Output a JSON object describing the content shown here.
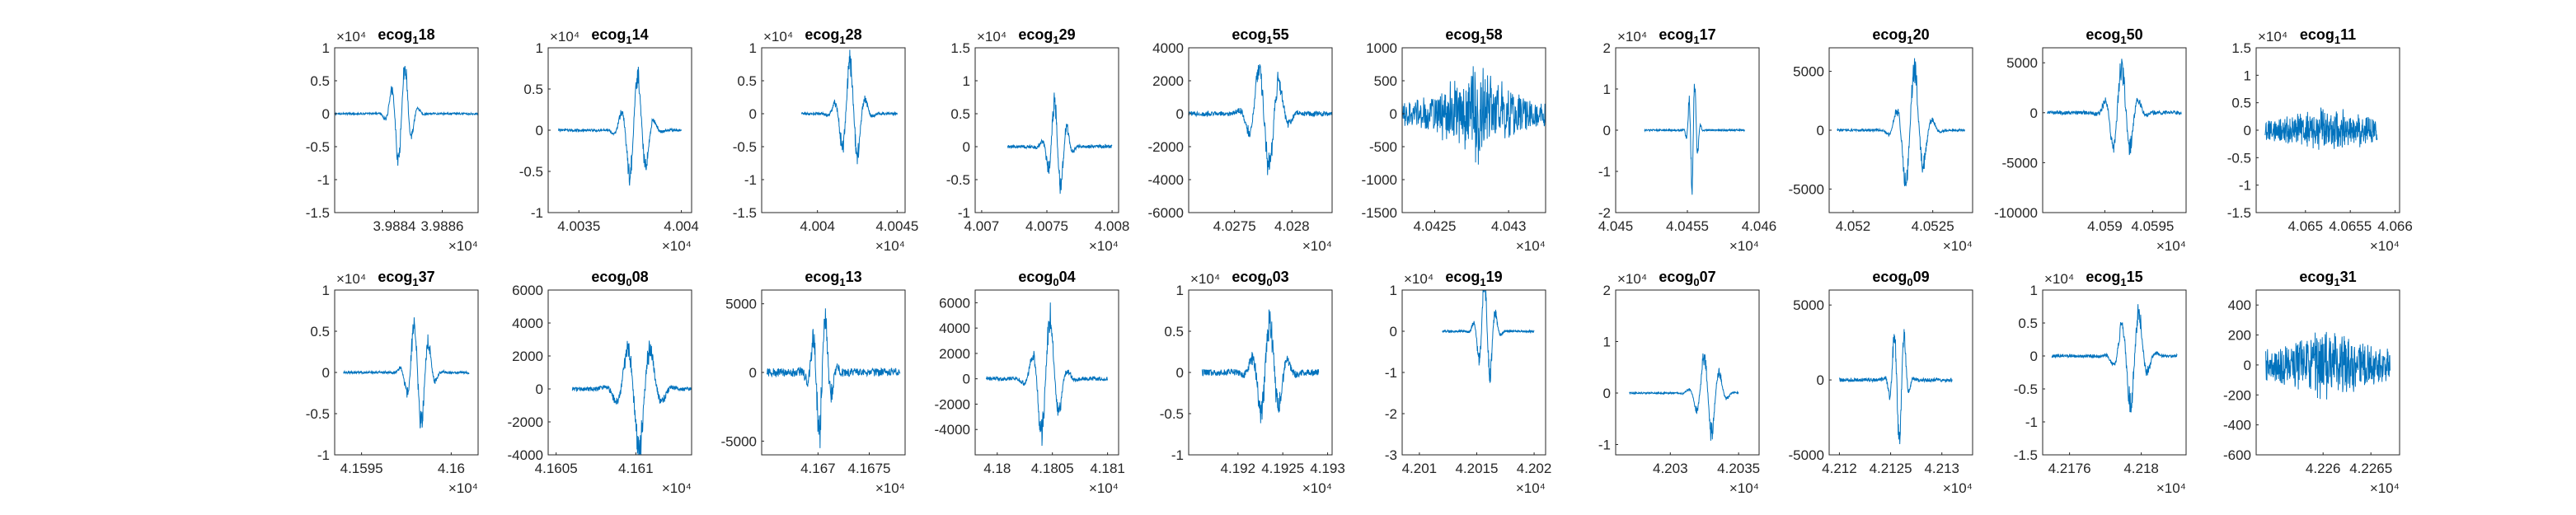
{
  "figure": {
    "background": "#ffffff",
    "line_color": "#0072bd",
    "axis_color": "#262626"
  },
  "chart_data": [
    {
      "type": "line",
      "title": "ecog",
      "subscript": "1",
      "channel": "18",
      "ylim": [
        -1.5,
        1
      ],
      "yticks": [
        "1",
        "0.5",
        "0",
        "-0.5",
        "-1",
        "-1.5"
      ],
      "yexp": "×10⁴",
      "xlim": [
        3.98815,
        3.98875
      ],
      "xticks": [
        "3.9884",
        "3.9886"
      ],
      "xexp": "×10⁴",
      "series": [
        {
          "style": "wavelet",
          "center": 3.98843,
          "width": 7e-05,
          "amplitude": 0.95,
          "noise": 0.03,
          "x_start": 3.98815,
          "x_end": 3.98875
        }
      ]
    },
    {
      "type": "line",
      "title": "ecog",
      "subscript": "1",
      "channel": "14",
      "ylim": [
        -1,
        1
      ],
      "yticks": [
        "1",
        "0.5",
        "0",
        "-0.5",
        "-1"
      ],
      "yexp": "×10⁴",
      "xlim": [
        4.00335,
        4.00405
      ],
      "xticks": [
        "4.0035",
        "4.004"
      ],
      "xexp": "×10⁴",
      "series": [
        {
          "style": "wavelet",
          "center": 4.00378,
          "width": 0.0001,
          "amplitude": 0.85,
          "noise": 0.03,
          "x_start": 4.0034,
          "x_end": 4.004
        }
      ]
    },
    {
      "type": "line",
      "title": "ecog",
      "subscript": "1",
      "channel": "28",
      "ylim": [
        -1.5,
        1
      ],
      "yticks": [
        "1",
        "0.5",
        "0",
        "-0.5",
        "-1",
        "-1.5"
      ],
      "yexp": "×10⁴",
      "xlim": [
        4.00365,
        4.00455
      ],
      "xticks": [
        "4.004",
        "4.0045"
      ],
      "xexp": "×10⁴",
      "series": [
        {
          "style": "wavelet",
          "center": 4.00421,
          "width": 0.00012,
          "amplitude": 1.0,
          "noise": 0.04,
          "x_start": 4.0039,
          "x_end": 4.0045
        }
      ]
    },
    {
      "type": "line",
      "title": "ecog",
      "subscript": "1",
      "channel": "29",
      "ylim": [
        -1,
        1.5
      ],
      "yticks": [
        "1.5",
        "1",
        "0.5",
        "0",
        "-0.5",
        "-1"
      ],
      "yexp": "×10⁴",
      "xlim": [
        4.00695,
        4.00805
      ],
      "xticks": [
        "4.007",
        "4.0075",
        "4.008"
      ],
      "xexp": "×10⁴",
      "series": [
        {
          "style": "wavelet",
          "center": 4.00758,
          "width": 0.00012,
          "amplitude": 0.9,
          "noise": 0.05,
          "x_start": 4.0072,
          "x_end": 4.008
        }
      ]
    },
    {
      "type": "line",
      "title": "ecog",
      "subscript": "1",
      "channel": "55",
      "ylim": [
        -6000,
        4000
      ],
      "yticks": [
        "4000",
        "2000",
        "0",
        "-2000",
        "-4000",
        "-6000"
      ],
      "yexp": "",
      "xlim": [
        4.0271,
        4.02835
      ],
      "xticks": [
        "4.0275",
        "4.028"
      ],
      "xexp": "×10⁴",
      "series": [
        {
          "style": "wavelet",
          "center": 4.02778,
          "width": 0.00022,
          "amplitude": 4200,
          "noise": 300,
          "x_start": 4.0271,
          "x_end": 4.02835
        }
      ]
    },
    {
      "type": "line",
      "title": "ecog",
      "subscript": "1",
      "channel": "58",
      "ylim": [
        -1500,
        1000
      ],
      "yticks": [
        "1000",
        "500",
        "0",
        "-500",
        "-1000",
        "-1500"
      ],
      "yexp": "",
      "xlim": [
        4.04228,
        4.04325
      ],
      "xticks": [
        "4.0425",
        "4.043"
      ],
      "xexp": "×10⁴",
      "series": [
        {
          "style": "noise",
          "center": 4.04278,
          "width": 0.0003,
          "amplitude": 900,
          "noise": 380,
          "x_start": 4.04228,
          "x_end": 4.04325
        }
      ]
    },
    {
      "type": "line",
      "title": "ecog",
      "subscript": "1",
      "channel": "17",
      "ylim": [
        -2,
        2
      ],
      "yticks": [
        "2",
        "1",
        "0",
        "-1",
        "-2"
      ],
      "yexp": "×10⁴",
      "xlim": [
        4.045,
        4.046
      ],
      "xticks": [
        "4.045",
        "4.0455",
        "4.046"
      ],
      "xexp": "×10⁴",
      "series": [
        {
          "style": "wavelet",
          "center": 4.04554,
          "width": 5e-05,
          "amplitude": 1.7,
          "noise": 0.04,
          "x_start": 4.0452,
          "x_end": 4.0459
        }
      ]
    },
    {
      "type": "line",
      "title": "ecog",
      "subscript": "1",
      "channel": "20",
      "ylim": [
        -7000,
        7000
      ],
      "yticks": [
        "5000",
        "0",
        "-5000"
      ],
      "yexp": "",
      "xlim": [
        4.05185,
        4.05275
      ],
      "xticks": [
        "4.052",
        "4.0525"
      ],
      "xexp": "×10⁴",
      "series": [
        {
          "style": "wavelet",
          "center": 4.05237,
          "width": 0.00014,
          "amplitude": 6500,
          "noise": 200,
          "x_start": 4.0519,
          "x_end": 4.0527
        }
      ]
    },
    {
      "type": "line",
      "title": "ecog",
      "subscript": "1",
      "channel": "50",
      "ylim": [
        -10000,
        6500
      ],
      "yticks": [
        "5000",
        "0",
        "-5000",
        "-10000"
      ],
      "yexp": "",
      "xlim": [
        4.05835,
        4.05985
      ],
      "xticks": [
        "4.059",
        "4.0595"
      ],
      "xexp": "×10⁴",
      "series": [
        {
          "style": "wavelet",
          "center": 4.05918,
          "width": 0.00022,
          "amplitude": 6000,
          "noise": 400,
          "x_start": 4.0584,
          "x_end": 4.0598
        }
      ]
    },
    {
      "type": "line",
      "title": "ecog",
      "subscript": "1",
      "channel": "11",
      "ylim": [
        -1.5,
        1.5
      ],
      "yticks": [
        "1.5",
        "1",
        "0.5",
        "0",
        "-0.5",
        "-1",
        "-1.5"
      ],
      "yexp": "×10⁴",
      "xlim": [
        4.06445,
        4.06605
      ],
      "xticks": [
        "4.065",
        "4.0655",
        "4.066"
      ],
      "xexp": "×10⁴",
      "series": [
        {
          "style": "noise",
          "center": 4.06525,
          "width": 0.0006,
          "amplitude": 0.35,
          "noise": 0.28,
          "x_start": 4.06455,
          "x_end": 4.0658
        }
      ]
    },
    {
      "type": "line",
      "title": "ecog",
      "subscript": "1",
      "channel": "37",
      "ylim": [
        -1,
        1
      ],
      "yticks": [
        "1",
        "0.5",
        "0",
        "-0.5",
        "-1"
      ],
      "yexp": "×10⁴",
      "xlim": [
        4.15935,
        4.16015
      ],
      "xticks": [
        "4.1595",
        "4.16"
      ],
      "xexp": "×10⁴",
      "series": [
        {
          "style": "wavelet",
          "center": 4.15982,
          "width": 0.0001,
          "amplitude": 0.85,
          "noise": 0.03,
          "x_start": 4.1594,
          "x_end": 4.1601
        }
      ]
    },
    {
      "type": "line",
      "title": "ecog",
      "subscript": "0",
      "channel": "08",
      "ylim": [
        -4000,
        6000
      ],
      "yticks": [
        "6000",
        "4000",
        "2000",
        "0",
        "-2000",
        "-4000"
      ],
      "yexp": "",
      "xlim": [
        4.16045,
        4.16135
      ],
      "xticks": [
        "4.1605",
        "4.161"
      ],
      "xexp": "×10⁴",
      "series": [
        {
          "style": "wavelet",
          "center": 4.16102,
          "width": 0.00018,
          "amplitude": 4300,
          "noise": 250,
          "x_start": 4.1606,
          "x_end": 4.16135
        }
      ]
    },
    {
      "type": "line",
      "title": "ecog",
      "subscript": "1",
      "channel": "13",
      "ylim": [
        -6000,
        6000
      ],
      "yticks": [
        "5000",
        "0",
        "-5000"
      ],
      "yexp": "",
      "xlim": [
        4.16645,
        4.16785
      ],
      "xticks": [
        "4.167",
        "4.1675"
      ],
      "xexp": "×10⁴",
      "series": [
        {
          "style": "wavelet",
          "center": 4.16703,
          "width": 0.00015,
          "amplitude": 5500,
          "noise": 600,
          "x_start": 4.1665,
          "x_end": 4.1678
        }
      ]
    },
    {
      "type": "line",
      "title": "ecog",
      "subscript": "0",
      "channel": "04",
      "ylim": [
        -6000,
        7000
      ],
      "yticks": [
        "6000",
        "4000",
        "2000",
        "0",
        "-2000",
        "-4000"
      ],
      "yexp": "",
      "xlim": [
        4.1798,
        4.1811
      ],
      "xticks": [
        "4.18",
        "4.1805",
        "4.181"
      ],
      "xexp": "×10⁴",
      "series": [
        {
          "style": "wavelet",
          "center": 4.18045,
          "width": 0.0002,
          "amplitude": 6000,
          "noise": 300,
          "x_start": 4.1799,
          "x_end": 4.181
        }
      ]
    },
    {
      "type": "line",
      "title": "ecog",
      "subscript": "0",
      "channel": "03",
      "ylim": [
        -1,
        1
      ],
      "yticks": [
        "1",
        "0.5",
        "0",
        "-0.5",
        "-1"
      ],
      "yexp": "×10⁴",
      "xlim": [
        4.19145,
        4.19305
      ],
      "xticks": [
        "4.192",
        "4.1925",
        "4.193"
      ],
      "xexp": "×10⁴",
      "series": [
        {
          "style": "wavelet",
          "center": 4.19235,
          "width": 0.00025,
          "amplitude": 0.8,
          "noise": 0.08,
          "x_start": 4.1916,
          "x_end": 4.1929
        }
      ]
    },
    {
      "type": "line",
      "title": "ecog",
      "subscript": "1",
      "channel": "19",
      "ylim": [
        -3,
        1
      ],
      "yticks": [
        "1",
        "0",
        "-1",
        "-2",
        "-3"
      ],
      "yexp": "×10⁴",
      "xlim": [
        4.20085,
        4.2021
      ],
      "xticks": [
        "4.201",
        "4.2015",
        "4.202"
      ],
      "xexp": "×10⁴",
      "series": [
        {
          "style": "wavelet",
          "center": 4.20158,
          "width": 0.00012,
          "amplitude": 1.6,
          "noise": 0.05,
          "x_start": 4.2012,
          "x_end": 4.202
        }
      ]
    },
    {
      "type": "line",
      "title": "ecog",
      "subscript": "0",
      "channel": "07",
      "ylim": [
        -1.2,
        2
      ],
      "yticks": [
        "2",
        "1",
        "0",
        "-1"
      ],
      "yexp": "×10⁴",
      "xlim": [
        4.2026,
        4.20365
      ],
      "xticks": [
        "4.203",
        "4.2035"
      ],
      "xexp": "×10⁴",
      "series": [
        {
          "style": "wavelet",
          "center": 4.20328,
          "width": 0.00014,
          "amplitude": 1.0,
          "noise": 0.03,
          "x_start": 4.2027,
          "x_end": 4.2035
        }
      ]
    },
    {
      "type": "line",
      "title": "ecog",
      "subscript": "0",
      "channel": "09",
      "ylim": [
        -5000,
        6000
      ],
      "yticks": [
        "5000",
        "0",
        "-5000"
      ],
      "yexp": "",
      "xlim": [
        4.2119,
        4.2133
      ],
      "xticks": [
        "4.212",
        "4.2125",
        "4.213"
      ],
      "xexp": "×10⁴",
      "series": [
        {
          "style": "wavelet",
          "center": 4.21258,
          "width": 0.00012,
          "amplitude": 5000,
          "noise": 250,
          "x_start": 4.212,
          "x_end": 4.2131
        }
      ]
    },
    {
      "type": "line",
      "title": "ecog",
      "subscript": "1",
      "channel": "15",
      "ylim": [
        -1.5,
        1
      ],
      "yticks": [
        "1",
        "0.5",
        "0",
        "-0.5",
        "-1",
        "-1.5"
      ],
      "yexp": "×10⁴",
      "xlim": [
        4.21745,
        4.21825
      ],
      "xticks": [
        "4.2176",
        "4.218"
      ],
      "xexp": "×10⁴",
      "series": [
        {
          "style": "wavelet",
          "center": 4.21795,
          "width": 0.00012,
          "amplitude": 0.95,
          "noise": 0.05,
          "x_start": 4.2175,
          "x_end": 4.2182
        }
      ]
    },
    {
      "type": "line",
      "title": "ecog",
      "subscript": "1",
      "channel": "31",
      "ylim": [
        -600,
        500
      ],
      "yticks": [
        "400",
        "200",
        "0",
        "-200",
        "-400",
        "-600"
      ],
      "yexp": "",
      "xlim": [
        4.2253,
        4.2268
      ],
      "xticks": [
        "4.226",
        "4.2265"
      ],
      "xexp": "×10⁴",
      "series": [
        {
          "style": "noise",
          "center": 4.22605,
          "width": 0.0005,
          "amplitude": 150,
          "noise": 180,
          "x_start": 4.2254,
          "x_end": 4.2267
        }
      ]
    }
  ]
}
